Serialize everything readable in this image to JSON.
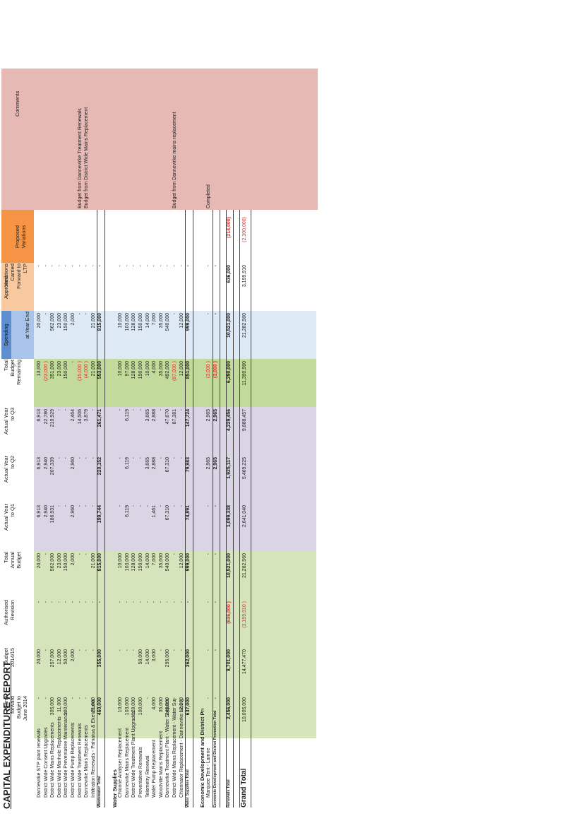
{
  "title": "CAPITAL EXPENDITURE REPORT",
  "group_headers": {
    "spending": "Spending",
    "approved": "Approved",
    "proposed": "Proposed\nVariations"
  },
  "columns": [
    "Carry\nforward\nBudget to\nJune 2014",
    "Budget\n2014/15",
    "Authorised\nRevision",
    "Total\nAnnual\nBudget",
    "Actual Year\nto Q1",
    "Actual Year\nto Q2",
    "Actual Year\nto Q3",
    "Total\nBudget\nRemaining",
    "at Year End",
    "Variations\nCarried\nForward to\nLTP",
    "Proposed\nVariations",
    "Comments"
  ],
  "rows": [
    {
      "label": "Dannevirke STP plant renewals",
      "type": "item",
      "values": [
        "-",
        "20,000",
        "-",
        "20,000",
        "6,913",
        "6,913",
        "6,913",
        "13,000",
        "20,000",
        "-",
        "",
        ""
      ]
    },
    {
      "label": "District Wide Consent Upgrades",
      "type": "item",
      "values": [
        "-",
        "-",
        "-",
        "-",
        "2,940",
        "2,940",
        "22,780",
        "(23,000 )",
        "-",
        "-",
        "",
        ""
      ]
    },
    {
      "label": "District Wide Mains Replacements",
      "type": "item",
      "values": [
        "305,000",
        "257,000",
        "-",
        "562,000",
        "186,931",
        "207,339",
        "210,929",
        "351,000",
        "562,000",
        "-",
        "",
        ""
      ]
    },
    {
      "label": "District Wide Manhole Replacements",
      "type": "item",
      "values": [
        "11,000",
        "12,000",
        "-",
        "23,000",
        "-",
        "-",
        "-",
        "23,000",
        "23,000",
        "-",
        "",
        ""
      ]
    },
    {
      "label": "District Wide Preventative Maintenance",
      "type": "item",
      "values": [
        "100,000",
        "50,000",
        "-",
        "150,000",
        "-",
        "-",
        "-",
        "150,000",
        "150,000",
        "-",
        "",
        ""
      ]
    },
    {
      "label": "District Wide Pump Replacements",
      "type": "item",
      "values": [
        "-",
        "2,000",
        "-",
        "2,000",
        "2,960",
        "2,960",
        "2,464",
        "-",
        "2,000",
        "-",
        "",
        ""
      ]
    },
    {
      "label": "District Wide Treatment Renewals",
      "type": "item",
      "values": [
        "-",
        "-",
        "-",
        "-",
        "-",
        "-",
        "14,506",
        "(15,000 )",
        "-",
        "-",
        "",
        "Budget from Dannevirke Treatment Renewals"
      ]
    },
    {
      "label": "Dannevirke Mains Replacements",
      "type": "item",
      "values": [
        "-",
        "-",
        "-",
        "-",
        "-",
        "-",
        "3,879",
        "(4,000 )",
        "-",
        "-",
        "",
        "Budget from District Wide Mains Replacement"
      ]
    },
    {
      "label": "Infiltration Renewals - Pahiatua & Eketahuna",
      "type": "item",
      "values": [
        "21,000",
        "-",
        "-",
        "21,000",
        "-",
        "-",
        "-",
        "21,000",
        "21,000",
        "-",
        "",
        ""
      ]
    },
    {
      "label": "Wastewater Total",
      "type": "total",
      "values": [
        "460,000",
        "355,000",
        "-",
        "815,000",
        "199,744",
        "220,152",
        "261,471",
        "553,000",
        "815,000",
        "-",
        "",
        ""
      ]
    },
    {
      "label": "",
      "type": "gap",
      "values": []
    },
    {
      "label": "Water Supplies",
      "type": "section",
      "values": []
    },
    {
      "label": "Chlorine Analyser Replacement",
      "type": "item",
      "values": [
        "10,000",
        "-",
        "-",
        "10,000",
        "-",
        "-",
        "-",
        "10,000",
        "10,000",
        "-",
        "",
        ""
      ]
    },
    {
      "label": "Dannevirke Mains Replacement",
      "type": "item",
      "values": [
        "103,000",
        "-",
        "-",
        "103,000",
        "6,119",
        "6,119",
        "6,119",
        "97,000",
        "103,000",
        "-",
        "",
        ""
      ]
    },
    {
      "label": "District Wide Treatment Plant Upgrades",
      "type": "item",
      "values": [
        "128,000",
        "-",
        "-",
        "128,000",
        "-",
        "-",
        "-",
        "128,000",
        "128,000",
        "-",
        "",
        ""
      ]
    },
    {
      "label": "Preventative Renewals",
      "type": "item",
      "values": [
        "100,000",
        "50,000",
        "-",
        "150,000",
        "-",
        "-",
        "-",
        "150,000",
        "150,000",
        "-",
        "",
        ""
      ]
    },
    {
      "label": "Telemetry Renewal",
      "type": "item",
      "values": [
        "-",
        "14,000",
        "-",
        "14,000",
        "-",
        "3,665",
        "3,665",
        "10,000",
        "14,000",
        "-",
        "",
        ""
      ]
    },
    {
      "label": "Water Pump Replacement",
      "type": "item",
      "values": [
        "4,000",
        "3,000",
        "-",
        "7,000",
        "1,461",
        "2,888",
        "2,888",
        "4,000",
        "7,000",
        "-",
        "",
        ""
      ]
    },
    {
      "label": "Woodville Mains Replacement",
      "type": "item",
      "values": [
        "35,000",
        "-",
        "-",
        "35,000",
        "-",
        "-",
        "-",
        "35,000",
        "35,000",
        "-",
        "",
        ""
      ]
    },
    {
      "label": "Dannevirke Treatment Plant - Water Supplies",
      "type": "item",
      "values": [
        "245,000",
        "295,000",
        "-",
        "540,000",
        "67,310",
        "67,310",
        "47,670",
        "492,000",
        "540,000",
        "-",
        "",
        ""
      ]
    },
    {
      "label": "District Wide Mains Replacement - Water Sup",
      "type": "item",
      "values": [
        "-",
        "-",
        "-",
        "-",
        "-",
        "-",
        "87,381",
        "(87,000 )",
        "-",
        "-",
        "",
        "Budget from Dannevirke mains replacement"
      ]
    },
    {
      "label": "Chlorinator Replacement - Dannevirke No1 (p",
      "type": "item",
      "values": [
        "12,000",
        "-",
        "-",
        "12,000",
        "-",
        "-",
        "-",
        "12,000",
        "12,000",
        "-",
        "",
        ""
      ]
    },
    {
      "label": "Water Supplies Total",
      "type": "total",
      "values": [
        "637,000",
        "362,000",
        "-",
        "999,000",
        "74,891",
        "79,983",
        "147,724",
        "851,000",
        "999,000",
        "-",
        "",
        ""
      ]
    },
    {
      "label": "",
      "type": "gap",
      "values": []
    },
    {
      "label": "Economic Development and District Promotion",
      "type": "section",
      "values": []
    },
    {
      "label": "Marquee Tent - Lamne",
      "type": "item",
      "values": [
        "-",
        "-",
        "-",
        "-",
        "-",
        "2,965",
        "2,965",
        "(3,000 )",
        "-",
        "-",
        "",
        "Completed"
      ]
    },
    {
      "label": "Economic Development and District Promotion Total",
      "type": "total",
      "values": [
        "-",
        "-",
        "-",
        "-",
        "-",
        "2,965",
        "2,965",
        "(3,000 )",
        "-",
        "-",
        "",
        ""
      ]
    },
    {
      "label": "",
      "type": "gap",
      "values": []
    },
    {
      "label": "Renewals Total",
      "type": "total",
      "values": [
        "2,456,000",
        "8,701,000",
        "(636,000 )",
        "10,521,000",
        "1,099,338",
        "1,925,117",
        "4,229,456",
        "6,290,000",
        "10,521,000",
        "636,000",
        "(214,000)",
        ""
      ]
    },
    {
      "label": "",
      "type": "gap",
      "values": []
    },
    {
      "label": "Grand Total",
      "type": "grand",
      "values": [
        "10,005,000",
        "14,477,470",
        "(3,199,910 )",
        "21,282,560",
        "2,641,040",
        "5,469,225",
        "9,888,457",
        "11,390,560",
        "21,282,560",
        "3,199,910",
        "(2,300,000)",
        ""
      ]
    }
  ]
}
